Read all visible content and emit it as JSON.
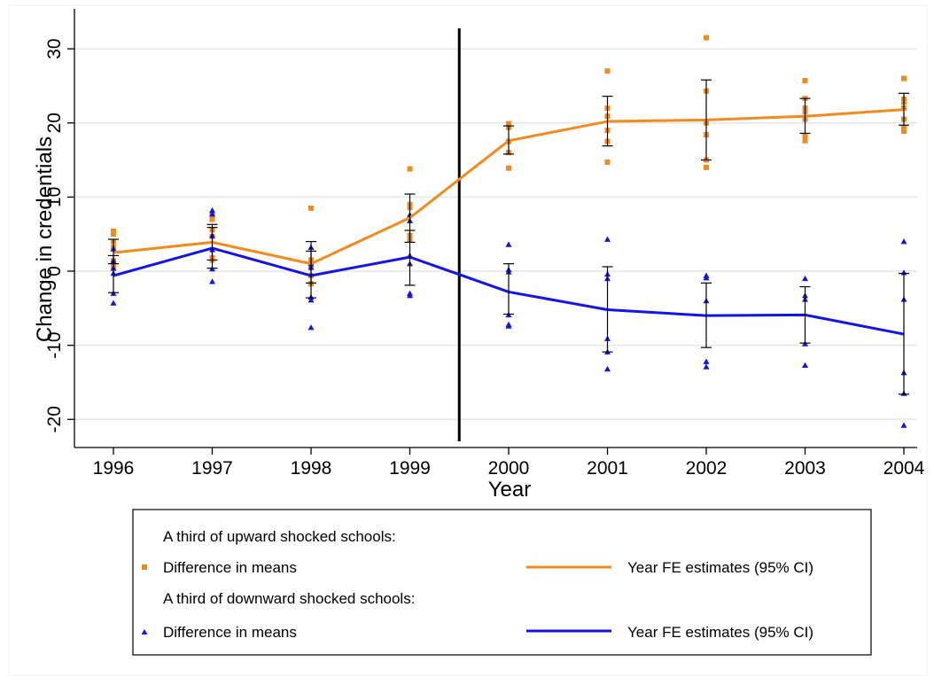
{
  "chart_data": {
    "type": "line",
    "xlabel": "Year",
    "ylabel": "Change in credentials",
    "title": "",
    "xlim": [
      1996,
      2004
    ],
    "ylim": [
      -22,
      33
    ],
    "x_ticks": [
      1996,
      1997,
      1998,
      1999,
      2000,
      2001,
      2002,
      2003,
      2004
    ],
    "y_ticks": [
      -20,
      -10,
      0,
      10,
      20,
      30
    ],
    "grid": true,
    "vline": {
      "x": 1999.5,
      "color": "#000000"
    },
    "legend": {
      "position": "bottom",
      "groups": [
        {
          "header": "A third of upward shocked schools:",
          "points_label": "Difference in means",
          "line_label": "Year FE estimates (95% CI)",
          "color": "#f28b1e",
          "marker": "square"
        },
        {
          "header": "A third of downward shocked schools:",
          "points_label": "Difference in means",
          "line_label": "Year FE estimates (95% CI)",
          "color": "#1414e6",
          "marker": "triangle"
        }
      ]
    },
    "series": [
      {
        "group": "upward",
        "color": "#f28b1e",
        "x": [
          1996,
          1997,
          1998,
          1999,
          2000,
          2001,
          2002,
          2003,
          2004
        ],
        "estimate": [
          2.5,
          3.9,
          1.0,
          7.2,
          17.6,
          20.2,
          20.4,
          20.9,
          21.8
        ],
        "ci_low": [
          1.0,
          1.5,
          -1.6,
          3.9,
          15.8,
          16.9,
          15.0,
          18.6,
          19.7
        ],
        "ci_high": [
          4.3,
          6.3,
          2.7,
          10.4,
          19.6,
          23.6,
          25.8,
          23.3,
          24.0
        ],
        "points": [
          [
            5.4,
            5.0,
            4.0,
            3.2,
            1.4,
            0.7
          ],
          [
            7.6,
            7.0,
            5.6,
            4.7,
            1.8,
            1.5
          ],
          [
            8.5,
            1.5,
            0.8,
            -0.6,
            -1.7
          ],
          [
            13.8,
            9.0,
            8.6,
            4.8,
            4.5,
            4.2
          ],
          [
            19.9,
            19.4,
            17.5,
            16.0,
            13.9
          ],
          [
            27.0,
            22.0,
            20.9,
            19.0,
            17.5,
            14.7
          ],
          [
            31.5,
            24.3,
            20.0,
            18.4,
            15.0,
            14.0
          ],
          [
            25.7,
            23.3,
            22.0,
            21.5,
            20.5,
            18.3,
            17.6
          ],
          [
            26.0,
            23.2,
            22.8,
            22.0,
            20.5,
            19.3,
            18.9
          ]
        ]
      },
      {
        "group": "downward",
        "color": "#1414e6",
        "x": [
          1996,
          1997,
          1998,
          1999,
          2000,
          2001,
          2002,
          2003,
          2004
        ],
        "estimate": [
          -0.6,
          3.1,
          -0.6,
          1.9,
          -2.8,
          -5.2,
          -6.0,
          -5.9,
          -8.5
        ],
        "ci_low": [
          -2.9,
          0.4,
          -3.6,
          -1.9,
          -5.8,
          -10.9,
          -10.3,
          -9.7,
          -16.6
        ],
        "ci_high": [
          2.1,
          5.9,
          4.0,
          5.5,
          1.0,
          0.6,
          -1.6,
          -2.1,
          -0.3
        ],
        "points": [
          [
            3.0,
            1.4,
            0.4,
            -0.3,
            -3.0,
            -4.3
          ],
          [
            8.2,
            7.7,
            4.8,
            2.9,
            0.3,
            -1.4
          ],
          [
            3.2,
            1.0,
            0.5,
            -3.5,
            -3.9,
            -7.6
          ],
          [
            7.6,
            6.8,
            2.1,
            1.0,
            -3.0,
            -3.3
          ],
          [
            3.6,
            0.2,
            -0.1,
            -5.9,
            -7.2,
            -7.4
          ],
          [
            4.3,
            -0.4,
            -1.0,
            -9.1,
            -10.9,
            -13.2
          ],
          [
            -0.6,
            -0.9,
            -4.0,
            -12.2,
            -12.9
          ],
          [
            -1.0,
            -3.3,
            -3.8,
            -9.8,
            -12.7
          ],
          [
            4.0,
            -0.2,
            -3.8,
            -13.7,
            -16.5,
            -20.8
          ]
        ]
      }
    ]
  }
}
